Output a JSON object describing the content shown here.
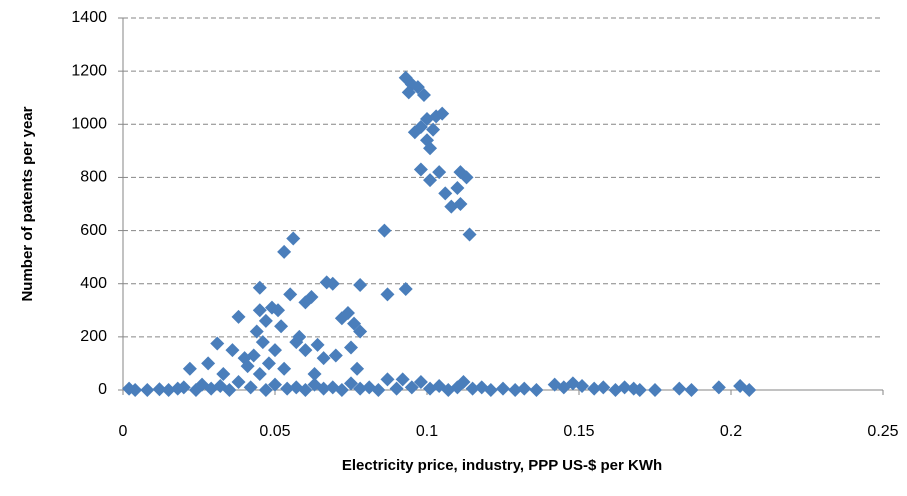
{
  "chart_data": {
    "type": "scatter",
    "xlabel": "Electricity price, industry, PPP US-$ per KWh",
    "ylabel": "Number of patents per year",
    "xlim": [
      0,
      0.25
    ],
    "xticks": [
      0,
      0.05,
      0.1,
      0.15,
      0.2,
      0.25
    ],
    "ylim": [
      0,
      1400
    ],
    "yticks": [
      0,
      200,
      400,
      600,
      800,
      1000,
      1200,
      1400
    ],
    "grid": true,
    "series": [
      {
        "color": "#4a7ebb",
        "x": [
          0.093,
          0.095,
          0.094,
          0.097,
          0.099,
          0.096,
          0.098,
          0.1,
          0.103,
          0.105,
          0.1,
          0.101,
          0.102,
          0.098,
          0.101,
          0.104,
          0.106,
          0.108,
          0.11,
          0.111,
          0.111,
          0.113,
          0.114,
          0.086,
          0.087,
          0.093,
          0.053,
          0.056,
          0.045,
          0.067,
          0.069,
          0.078,
          0.038,
          0.031,
          0.045,
          0.047,
          0.049,
          0.051,
          0.055,
          0.06,
          0.062,
          0.058,
          0.064,
          0.072,
          0.074,
          0.076,
          0.078,
          0.044,
          0.046,
          0.05,
          0.043,
          0.048,
          0.052,
          0.057,
          0.06,
          0.066,
          0.07,
          0.075,
          0.036,
          0.04,
          0.028,
          0.022,
          0.033,
          0.041,
          0.053,
          0.063,
          0.077,
          0.045,
          0.002,
          0.004,
          0.008,
          0.012,
          0.015,
          0.018,
          0.02,
          0.024,
          0.026,
          0.029,
          0.032,
          0.035,
          0.038,
          0.042,
          0.047,
          0.05,
          0.054,
          0.057,
          0.06,
          0.063,
          0.066,
          0.069,
          0.072,
          0.075,
          0.078,
          0.081,
          0.084,
          0.087,
          0.09,
          0.092,
          0.095,
          0.098,
          0.101,
          0.104,
          0.107,
          0.11,
          0.112,
          0.115,
          0.118,
          0.121,
          0.125,
          0.129,
          0.132,
          0.136,
          0.142,
          0.145,
          0.148,
          0.151,
          0.155,
          0.158,
          0.162,
          0.165,
          0.168,
          0.17,
          0.175,
          0.183,
          0.187,
          0.196,
          0.203,
          0.206
        ],
        "y": [
          1175,
          1150,
          1120,
          1140,
          1110,
          970,
          990,
          1020,
          1030,
          1040,
          940,
          910,
          980,
          830,
          790,
          820,
          740,
          690,
          760,
          700,
          820,
          800,
          585,
          600,
          360,
          380,
          520,
          570,
          385,
          405,
          400,
          395,
          275,
          175,
          300,
          260,
          310,
          300,
          360,
          330,
          350,
          200,
          170,
          270,
          290,
          250,
          220,
          220,
          180,
          150,
          130,
          100,
          240,
          180,
          150,
          120,
          130,
          160,
          150,
          120,
          100,
          80,
          60,
          90,
          80,
          60,
          80,
          60,
          5,
          0,
          0,
          3,
          0,
          5,
          10,
          0,
          20,
          5,
          15,
          0,
          30,
          10,
          0,
          20,
          5,
          10,
          0,
          20,
          5,
          10,
          0,
          25,
          5,
          10,
          0,
          40,
          5,
          40,
          10,
          30,
          5,
          15,
          0,
          10,
          30,
          5,
          10,
          0,
          5,
          0,
          5,
          0,
          20,
          10,
          25,
          15,
          5,
          10,
          0,
          10,
          5,
          0,
          0,
          5,
          0,
          10,
          15,
          0
        ]
      }
    ]
  }
}
